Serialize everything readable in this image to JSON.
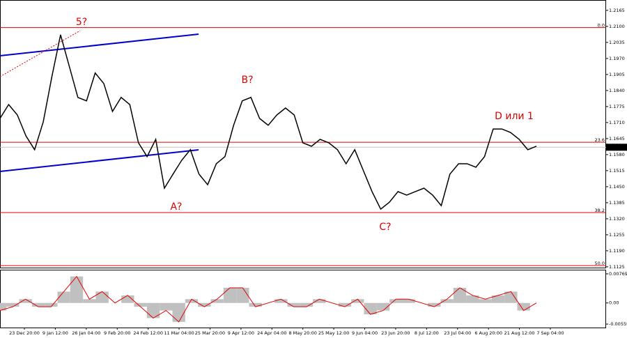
{
  "chart_data": [
    {
      "type": "line",
      "color": "#000000",
      "values": [
        1.1727,
        1.1783,
        1.1741,
        1.1656,
        1.16,
        1.1713,
        1.1897,
        1.2066,
        1.1939,
        1.1812,
        1.1798,
        1.1911,
        1.1868,
        1.1755,
        1.1812,
        1.1783,
        1.1628,
        1.1572,
        1.1642,
        1.1444,
        1.1501,
        1.1557,
        1.16,
        1.1501,
        1.1458,
        1.1543,
        1.1572,
        1.1699,
        1.1798,
        1.1812,
        1.1727,
        1.1699,
        1.1741,
        1.1769,
        1.1741,
        1.1628,
        1.1614,
        1.1642,
        1.1628,
        1.16,
        1.1543,
        1.16,
        1.1515,
        1.143,
        1.1359,
        1.1387,
        1.143,
        1.1416,
        1.143,
        1.1444,
        1.1416,
        1.1373,
        1.1501,
        1.1543,
        1.1543,
        1.1529,
        1.1572,
        1.1684,
        1.1684,
        1.167,
        1.1642,
        1.16,
        1.1614
      ],
      "ylim": [
        1.1119,
        1.2207
      ],
      "yticks": [
        1.2165,
        {
          "value": 1.21,
          "label": "1.2100"
        },
        1.2035,
        {
          "value": 1.197,
          "label": "1.1970"
        },
        1.1905,
        {
          "value": 1.184,
          "label": "1.1840"
        },
        1.1775,
        {
          "value": 1.171,
          "label": "1.1710"
        },
        1.1645,
        {
          "value": 1.158,
          "label": "1.1580"
        },
        1.1515,
        {
          "value": 1.145,
          "label": "1.1450"
        },
        1.1385,
        {
          "value": 1.132,
          "label": "1.1320"
        },
        1.1255,
        {
          "value": 1.119,
          "label": "1.1190"
        },
        1.1125
      ],
      "current_price": {
        "value": 1.161,
        "label": "1.1610"
      },
      "levels": [
        {
          "name": "0.0",
          "price": 1.2095
        },
        {
          "name": "23.6",
          "price": 1.163
        },
        {
          "name": "38.2",
          "price": 1.1345
        },
        {
          "name": "50.0",
          "price": 1.113
        }
      ],
      "level_color": "#e00000",
      "annotations": [
        "5?",
        "B?",
        "A?",
        "C?",
        "D или 1"
      ],
      "xlabels": [
        "23 Dec 20:00",
        "9 Jan 12:00",
        "26 Jan 04:00",
        "9 Feb 20:00",
        "24 Feb 12:00",
        "11 Mar 04:00",
        "25 Mar 20:00",
        "9 Apr 12:00",
        "24 Apr 04:00",
        "8 May 20:00",
        "25 May 12:00",
        "9 Jun 04:00",
        "23 Jun 20:00",
        "8 Jul 12:00",
        "23 Jul 04:00",
        "6 Aug 20:00",
        "21 Aug 12:00",
        "7 Sep 04:00"
      ]
    },
    {
      "type": "histogram",
      "color": "#c0c0c0",
      "line_color": "#e00000",
      "values": [
        -0.002,
        -0.001,
        0.001,
        -0.001,
        -0.001,
        0.003,
        0.007,
        0.001,
        0.003,
        0.0,
        0.002,
        -0.001,
        -0.004,
        -0.002,
        -0.005,
        0.001,
        -0.001,
        0.001,
        0.004,
        0.004,
        -0.001,
        0.0,
        0.001,
        -0.001,
        -0.001,
        0.001,
        0.0,
        -0.001,
        0.001,
        -0.003,
        -0.002,
        0.001,
        0.001,
        0.0,
        -0.001,
        0.001,
        0.004,
        0.002,
        0.001,
        0.002,
        0.003,
        -0.002,
        0.0
      ],
      "ylim": [
        -0.0065,
        0.0086
      ],
      "yticks": [
        0.00769,
        {
          "value": 0,
          "label": "0.00"
        },
        -0.00559
      ]
    }
  ]
}
